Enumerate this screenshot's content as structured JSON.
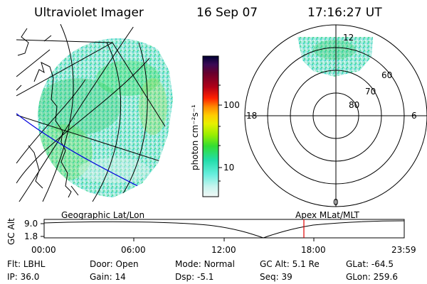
{
  "header": {
    "instrument": "Ultraviolet Imager",
    "date": "16 Sep 07",
    "time": "17:16:27 UT"
  },
  "colorbar": {
    "unit_label": "photon cm⁻²s⁻¹",
    "ticks": [
      "100",
      "10"
    ],
    "colors": [
      "#000033",
      "#2a0a4a",
      "#55003a",
      "#7a0022",
      "#a80018",
      "#d6001f",
      "#ff2a00",
      "#ff7a00",
      "#ffb800",
      "#f4e800",
      "#b8f200",
      "#66ee22",
      "#22dd66",
      "#22ddbb",
      "#66eedd",
      "#bff4ec",
      "#eef8f6"
    ]
  },
  "polar_plot": {
    "mlt_labels": {
      "top": "12",
      "left": "18",
      "right": "6",
      "bottom": "0"
    },
    "lat_labels": [
      "60",
      "70",
      "80"
    ]
  },
  "timeline": {
    "ylabel": "GC Alt",
    "y_ticks": [
      "9.0",
      "1.8"
    ],
    "left_caption": "Geographic Lat/Lon",
    "right_caption": "Apex  MLat/MLT",
    "x_ticks": [
      "00:00",
      "06:00",
      "12:00",
      "18:00",
      "23:59"
    ],
    "marker_color": "#e00000"
  },
  "info_rows": {
    "row1": [
      {
        "label": "Flt:",
        "value": "LBHL"
      },
      {
        "label": "Door:",
        "value": "Open"
      },
      {
        "label": "Mode:",
        "value": "Normal"
      },
      {
        "label": "GC Alt:",
        "value": "5.1 Re"
      },
      {
        "label": "GLat:",
        "value": "-64.5"
      }
    ],
    "row2": [
      {
        "label": "IP:",
        "value": "36.0"
      },
      {
        "label": "Gain:",
        "value": "14"
      },
      {
        "label": "Dsp:",
        "value": "-5.1"
      },
      {
        "label": "Seq:",
        "value": "39"
      },
      {
        "label": "GLon:",
        "value": "259.6"
      }
    ]
  }
}
